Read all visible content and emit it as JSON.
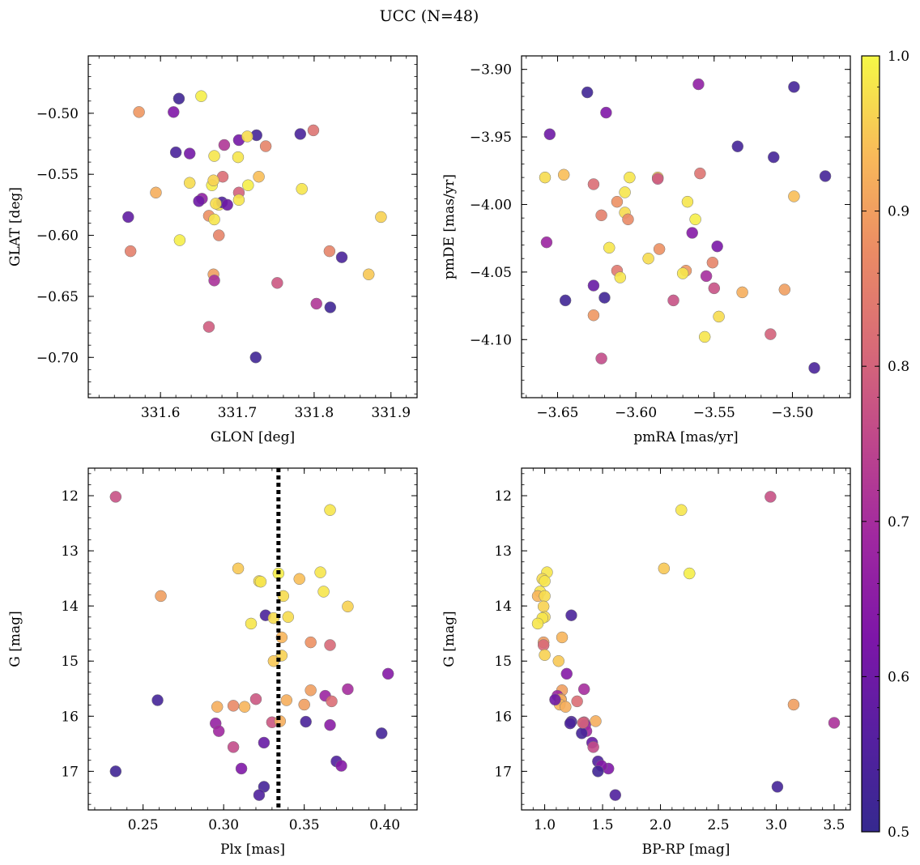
{
  "title": "UCC (N=48)",
  "colorbar": {
    "range": [
      0.5,
      1.0
    ],
    "tick_labels": [
      "0.5",
      "0.6",
      "0.7",
      "0.8",
      "0.9",
      "1.0"
    ],
    "tick_values": [
      0.5,
      0.6,
      0.7,
      0.8,
      0.9,
      1.0
    ],
    "colormap": "plasma"
  },
  "chart_data": [
    {
      "type": "scatter",
      "xlabel": "GLON [deg]",
      "ylabel": "GLAT [deg]",
      "xlim": [
        331.506,
        331.934
      ],
      "ylim": [
        -0.733,
        -0.453
      ],
      "y_inverted": false,
      "x_ticks": [
        331.6,
        331.7,
        331.8,
        331.9
      ],
      "x_tick_labels": [
        "331.6",
        "331.7",
        "331.8",
        "331.9"
      ],
      "y_ticks": [
        -0.7,
        -0.65,
        -0.6,
        -0.55,
        -0.5
      ],
      "y_tick_labels": [
        "−0.70",
        "−0.65",
        "−0.60",
        "−0.55",
        "−0.50"
      ],
      "points": [
        [
          331.624,
          -0.488,
          0.52
        ],
        [
          331.653,
          -0.486,
          0.99
        ],
        [
          331.572,
          -0.499,
          0.89
        ],
        [
          331.617,
          -0.499,
          0.63
        ],
        [
          331.725,
          -0.518,
          0.53
        ],
        [
          331.782,
          -0.517,
          0.54
        ],
        [
          331.799,
          -0.514,
          0.83
        ],
        [
          331.62,
          -0.532,
          0.54
        ],
        [
          331.638,
          -0.533,
          0.61
        ],
        [
          331.683,
          -0.526,
          0.72
        ],
        [
          331.702,
          -0.522,
          0.61
        ],
        [
          331.713,
          -0.519,
          0.97
        ],
        [
          331.737,
          -0.527,
          0.86
        ],
        [
          331.67,
          -0.535,
          0.98
        ],
        [
          331.701,
          -0.536,
          0.98
        ],
        [
          331.681,
          -0.552,
          0.82
        ],
        [
          331.638,
          -0.557,
          0.97
        ],
        [
          331.667,
          -0.559,
          0.99
        ],
        [
          331.669,
          -0.555,
          0.96
        ],
        [
          331.728,
          -0.552,
          0.94
        ],
        [
          331.714,
          -0.559,
          0.99
        ],
        [
          331.784,
          -0.562,
          0.98
        ],
        [
          331.594,
          -0.565,
          0.92
        ],
        [
          331.654,
          -0.57,
          0.66
        ],
        [
          331.676,
          -0.575,
          0.98
        ],
        [
          331.68,
          -0.573,
          0.55
        ],
        [
          331.687,
          -0.575,
          0.6
        ],
        [
          331.702,
          -0.565,
          0.8
        ],
        [
          331.672,
          -0.574,
          0.97
        ],
        [
          331.663,
          -0.584,
          0.88
        ],
        [
          331.67,
          -0.587,
          0.98
        ],
        [
          331.558,
          -0.585,
          0.58
        ],
        [
          331.676,
          -0.6,
          0.86
        ],
        [
          331.625,
          -0.604,
          0.99
        ],
        [
          331.887,
          -0.585,
          0.96
        ],
        [
          331.561,
          -0.613,
          0.85
        ],
        [
          331.82,
          -0.613,
          0.86
        ],
        [
          331.836,
          -0.618,
          0.54
        ],
        [
          331.669,
          -0.632,
          0.9
        ],
        [
          331.67,
          -0.637,
          0.71
        ],
        [
          331.871,
          -0.632,
          0.95
        ],
        [
          331.752,
          -0.639,
          0.78
        ],
        [
          331.803,
          -0.656,
          0.72
        ],
        [
          331.821,
          -0.659,
          0.52
        ],
        [
          331.663,
          -0.675,
          0.79
        ],
        [
          331.702,
          -0.571,
          0.98
        ],
        [
          331.724,
          -0.7,
          0.52
        ],
        [
          331.65,
          -0.572,
          0.6
        ]
      ]
    },
    {
      "type": "scatter",
      "xlabel": "pmRA [mas/yr]",
      "ylabel": "pmDE [mas/yr]",
      "xlim": [
        -3.673,
        -3.463
      ],
      "ylim": [
        -4.143,
        -3.89
      ],
      "y_inverted": false,
      "x_ticks": [
        -3.65,
        -3.6,
        -3.55,
        -3.5
      ],
      "x_tick_labels": [
        "−3.65",
        "−3.60",
        "−3.55",
        "−3.50"
      ],
      "y_ticks": [
        -4.1,
        -4.05,
        -4.0,
        -3.95,
        -3.9
      ],
      "y_tick_labels": [
        "−4.10",
        "−4.05",
        "−4.00",
        "−3.95",
        "−3.90"
      ],
      "points": [
        [
          -3.631,
          -3.917,
          0.52
        ],
        [
          -3.619,
          -3.932,
          0.63
        ],
        [
          -3.56,
          -3.911,
          0.66
        ],
        [
          -3.499,
          -3.913,
          0.53
        ],
        [
          -3.655,
          -3.948,
          0.6
        ],
        [
          -3.535,
          -3.957,
          0.53
        ],
        [
          -3.512,
          -3.965,
          0.53
        ],
        [
          -3.479,
          -3.979,
          0.53
        ],
        [
          -3.658,
          -3.98,
          0.97
        ],
        [
          -3.646,
          -3.978,
          0.94
        ],
        [
          -3.627,
          -3.985,
          0.82
        ],
        [
          -3.604,
          -3.98,
          0.98
        ],
        [
          -3.586,
          -3.98,
          0.95
        ],
        [
          -3.586,
          -3.981,
          0.78
        ],
        [
          -3.559,
          -3.977,
          0.83
        ],
        [
          -3.612,
          -3.998,
          0.88
        ],
        [
          -3.607,
          -3.991,
          0.98
        ],
        [
          -3.567,
          -3.998,
          0.98
        ],
        [
          -3.499,
          -3.994,
          0.94
        ],
        [
          -3.622,
          -4.008,
          0.85
        ],
        [
          -3.607,
          -4.006,
          0.97
        ],
        [
          -3.605,
          -4.011,
          0.87
        ],
        [
          -3.562,
          -4.011,
          0.99
        ],
        [
          -3.564,
          -4.021,
          0.64
        ],
        [
          -3.657,
          -4.028,
          0.68
        ],
        [
          -3.617,
          -4.032,
          0.98
        ],
        [
          -3.585,
          -4.033,
          0.88
        ],
        [
          -3.548,
          -4.031,
          0.62
        ],
        [
          -3.592,
          -4.04,
          0.97
        ],
        [
          -3.612,
          -4.049,
          0.84
        ],
        [
          -3.61,
          -4.054,
          0.98
        ],
        [
          -3.568,
          -4.049,
          0.89
        ],
        [
          -3.57,
          -4.051,
          0.98
        ],
        [
          -3.551,
          -4.043,
          0.86
        ],
        [
          -3.555,
          -4.053,
          0.7
        ],
        [
          -3.627,
          -4.06,
          0.59
        ],
        [
          -3.55,
          -4.062,
          0.77
        ],
        [
          -3.532,
          -4.065,
          0.92
        ],
        [
          -3.505,
          -4.063,
          0.9
        ],
        [
          -3.645,
          -4.071,
          0.52
        ],
        [
          -3.62,
          -4.069,
          0.52
        ],
        [
          -3.576,
          -4.071,
          0.77
        ],
        [
          -3.627,
          -4.082,
          0.89
        ],
        [
          -3.547,
          -4.083,
          0.97
        ],
        [
          -3.514,
          -4.096,
          0.8
        ],
        [
          -3.556,
          -4.098,
          0.98
        ],
        [
          -3.622,
          -4.114,
          0.76
        ],
        [
          -3.486,
          -4.121,
          0.54
        ]
      ]
    },
    {
      "type": "scatter",
      "xlabel": "Plx [mas]",
      "ylabel": "G [mag]",
      "xlim": [
        0.216,
        0.42
      ],
      "ylim": [
        17.7,
        11.5
      ],
      "y_inverted": true,
      "x_ticks": [
        0.25,
        0.3,
        0.35,
        0.4
      ],
      "x_tick_labels": [
        "0.25",
        "0.30",
        "0.35",
        "0.40"
      ],
      "y_ticks": [
        12,
        13,
        14,
        15,
        16,
        17
      ],
      "y_tick_labels": [
        "12",
        "13",
        "14",
        "15",
        "16",
        "17"
      ],
      "vline": 0.334,
      "points": [
        [
          0.233,
          12.02,
          0.77
        ],
        [
          0.366,
          12.26,
          0.98
        ],
        [
          0.309,
          13.32,
          0.95
        ],
        [
          0.36,
          13.39,
          0.98
        ],
        [
          0.322,
          13.55,
          0.97
        ],
        [
          0.323,
          13.56,
          0.98
        ],
        [
          0.334,
          13.41,
          0.99
        ],
        [
          0.347,
          13.51,
          0.94
        ],
        [
          0.362,
          13.74,
          0.98
        ],
        [
          0.261,
          13.82,
          0.9
        ],
        [
          0.337,
          13.82,
          0.97
        ],
        [
          0.377,
          14.01,
          0.96
        ],
        [
          0.326,
          14.17,
          0.54
        ],
        [
          0.331,
          14.22,
          0.97
        ],
        [
          0.34,
          14.2,
          0.97
        ],
        [
          0.317,
          14.32,
          0.98
        ],
        [
          0.336,
          14.57,
          0.93
        ],
        [
          0.354,
          14.66,
          0.88
        ],
        [
          0.366,
          14.71,
          0.81
        ],
        [
          0.336,
          14.9,
          0.96
        ],
        [
          0.331,
          15.0,
          0.95
        ],
        [
          0.402,
          15.23,
          0.64
        ],
        [
          0.354,
          15.53,
          0.9
        ],
        [
          0.377,
          15.51,
          0.7
        ],
        [
          0.259,
          15.71,
          0.53
        ],
        [
          0.32,
          15.69,
          0.78
        ],
        [
          0.339,
          15.71,
          0.92
        ],
        [
          0.363,
          15.63,
          0.68
        ],
        [
          0.367,
          15.73,
          0.82
        ],
        [
          0.296,
          15.83,
          0.92
        ],
        [
          0.306,
          15.81,
          0.87
        ],
        [
          0.313,
          15.83,
          0.93
        ],
        [
          0.35,
          15.79,
          0.9
        ],
        [
          0.33,
          16.11,
          0.78
        ],
        [
          0.335,
          16.09,
          0.92
        ],
        [
          0.351,
          16.1,
          0.54
        ],
        [
          0.366,
          16.16,
          0.65
        ],
        [
          0.295,
          16.13,
          0.67
        ],
        [
          0.297,
          16.27,
          0.69
        ],
        [
          0.398,
          16.31,
          0.53
        ],
        [
          0.306,
          16.56,
          0.76
        ],
        [
          0.325,
          16.48,
          0.59
        ],
        [
          0.311,
          16.95,
          0.63
        ],
        [
          0.37,
          16.82,
          0.55
        ],
        [
          0.373,
          16.9,
          0.64
        ],
        [
          0.233,
          17.0,
          0.52
        ],
        [
          0.325,
          17.28,
          0.53
        ],
        [
          0.322,
          17.43,
          0.55
        ]
      ]
    },
    {
      "type": "scatter",
      "xlabel": "BP-RP [mag]",
      "ylabel": "G [mag]",
      "xlim": [
        0.8,
        3.64
      ],
      "ylim": [
        17.7,
        11.5
      ],
      "y_inverted": true,
      "x_ticks": [
        1.0,
        1.5,
        2.0,
        2.5,
        3.0,
        3.5
      ],
      "x_tick_labels": [
        "1.0",
        "1.5",
        "2.0",
        "2.5",
        "3.0",
        "3.5"
      ],
      "y_ticks": [
        12,
        13,
        14,
        15,
        16,
        17
      ],
      "y_tick_labels": [
        "12",
        "13",
        "14",
        "15",
        "16",
        "17"
      ],
      "points": [
        [
          2.95,
          12.02,
          0.77
        ],
        [
          2.18,
          12.26,
          0.98
        ],
        [
          2.03,
          13.32,
          0.95
        ],
        [
          2.25,
          13.41,
          0.99
        ],
        [
          1.02,
          13.39,
          0.98
        ],
        [
          0.98,
          13.51,
          0.97
        ],
        [
          1.0,
          13.55,
          0.98
        ],
        [
          0.96,
          13.74,
          0.98
        ],
        [
          0.94,
          13.82,
          0.93
        ],
        [
          1.0,
          13.82,
          0.97
        ],
        [
          0.99,
          14.01,
          0.96
        ],
        [
          1.0,
          14.2,
          0.97
        ],
        [
          0.98,
          14.22,
          0.98
        ],
        [
          0.94,
          14.32,
          0.98
        ],
        [
          1.23,
          14.17,
          0.54
        ],
        [
          1.15,
          14.57,
          0.93
        ],
        [
          0.99,
          14.66,
          0.9
        ],
        [
          0.99,
          14.71,
          0.81
        ],
        [
          1.0,
          14.89,
          0.96
        ],
        [
          1.12,
          15.0,
          0.95
        ],
        [
          1.19,
          15.23,
          0.64
        ],
        [
          1.34,
          15.51,
          0.7
        ],
        [
          1.15,
          15.53,
          0.9
        ],
        [
          1.11,
          15.63,
          0.68
        ],
        [
          1.14,
          15.69,
          0.9
        ],
        [
          1.14,
          15.71,
          0.92
        ],
        [
          1.28,
          15.73,
          0.82
        ],
        [
          1.13,
          15.79,
          0.93
        ],
        [
          1.18,
          15.83,
          0.92
        ],
        [
          3.15,
          15.79,
          0.9
        ],
        [
          1.23,
          16.1,
          0.54
        ],
        [
          1.44,
          16.09,
          0.92
        ],
        [
          1.34,
          16.11,
          0.78
        ],
        [
          1.35,
          16.16,
          0.67
        ],
        [
          1.36,
          16.27,
          0.69
        ],
        [
          1.32,
          16.31,
          0.53
        ],
        [
          1.41,
          16.48,
          0.59
        ],
        [
          1.42,
          16.56,
          0.76
        ],
        [
          1.46,
          16.82,
          0.55
        ],
        [
          1.55,
          16.95,
          0.63
        ],
        [
          1.49,
          16.9,
          0.64
        ],
        [
          1.46,
          17.0,
          0.52
        ],
        [
          3.01,
          17.28,
          0.53
        ],
        [
          1.61,
          17.43,
          0.55
        ],
        [
          3.5,
          16.12,
          0.71
        ],
        [
          1.09,
          15.7,
          0.6
        ],
        [
          1.22,
          16.13,
          0.54
        ],
        [
          1.33,
          16.12,
          0.8
        ]
      ]
    }
  ]
}
